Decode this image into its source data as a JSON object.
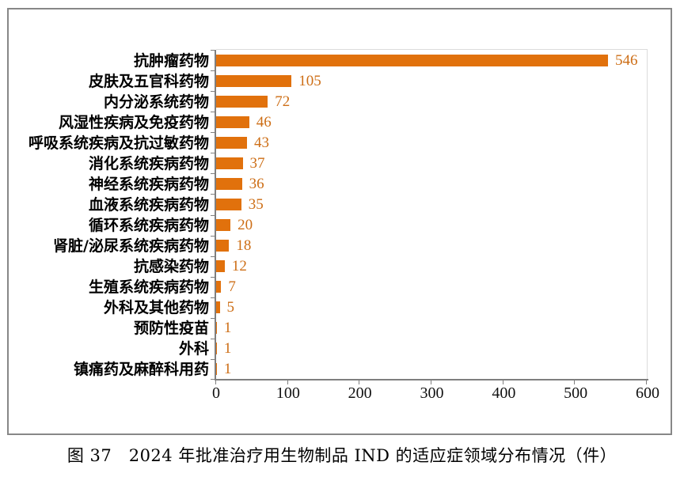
{
  "chart_data": {
    "type": "bar",
    "orientation": "horizontal",
    "categories": [
      "抗肿瘤药物",
      "皮肤及五官科药物",
      "内分泌系统药物",
      "风湿性疾病及免疫药物",
      "呼吸系统疾病及抗过敏药物",
      "消化系统疾病药物",
      "神经系统疾病药物",
      "血液系统疾病药物",
      "循环系统疾病药物",
      "肾脏/泌尿系统疾病药物",
      "抗感染药物",
      "生殖系统疾病药物",
      "外科及其他药物",
      "预防性疫苗",
      "外科",
      "镇痛药及麻醉科用药"
    ],
    "values": [
      546,
      105,
      72,
      46,
      43,
      37,
      36,
      35,
      20,
      18,
      12,
      7,
      5,
      1,
      1,
      1
    ],
    "xlim": [
      0,
      600
    ],
    "xticks": [
      0,
      100,
      200,
      300,
      400,
      500,
      600
    ],
    "grid": "off",
    "legend": "none",
    "bar_color": "#e1710c",
    "value_label_color": "#cd6e16",
    "caption": "图 37　2024 年批准治疗用生物制品 IND 的适应症领域分布情况（件）"
  }
}
